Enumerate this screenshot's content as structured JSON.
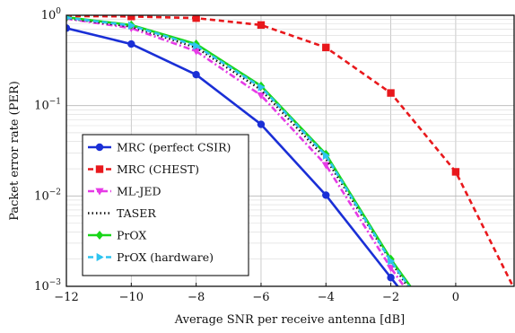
{
  "chart_data": {
    "type": "line",
    "xlabel": "Average SNR per receive antenna [dB]",
    "ylabel": "Packet error rate (PER)",
    "xlim": [
      -12,
      1.8
    ],
    "ylim": [
      0.001,
      1
    ],
    "y_scale": "log",
    "grid": true,
    "legend_position": "lower-left",
    "x_ticks": [
      "−12",
      "−10",
      "−8",
      "−6",
      "−4",
      "−2",
      "0"
    ],
    "x_tick_values": [
      -12,
      -10,
      -8,
      -6,
      -4,
      -2,
      0
    ],
    "y_ticks": [
      {
        "base": "10",
        "exp": "0",
        "value": 1
      },
      {
        "base": "10",
        "exp": "−1",
        "value": 0.1
      },
      {
        "base": "10",
        "exp": "−2",
        "value": 0.01
      },
      {
        "base": "10",
        "exp": "−3",
        "value": 0.001
      }
    ],
    "series": [
      {
        "name": "MRC (perfect CSIR)",
        "color": "#1a2fd6",
        "dash": "solid",
        "marker": "circle",
        "x": [
          -12,
          -10,
          -8,
          -6,
          -4,
          -2,
          -1.3
        ],
        "y": [
          0.72,
          0.48,
          0.22,
          0.062,
          0.0102,
          0.00125,
          0.0006
        ]
      },
      {
        "name": "MRC (CHEST)",
        "color": "#e8181c",
        "dash": "dashed",
        "marker": "square",
        "x": [
          -12,
          -10,
          -8,
          -6,
          -4,
          -2,
          0,
          1.9
        ],
        "y": [
          0.98,
          0.97,
          0.93,
          0.78,
          0.44,
          0.138,
          0.0185,
          0.0008
        ]
      },
      {
        "name": "ML-JED",
        "color": "#e63ae6",
        "dash": "dashdot",
        "marker": "triangle-down",
        "x": [
          -12,
          -10,
          -8,
          -6,
          -4,
          -2,
          -1.5
        ],
        "y": [
          0.92,
          0.72,
          0.4,
          0.13,
          0.022,
          0.0016,
          0.0009
        ]
      },
      {
        "name": "TASER",
        "color": "#111111",
        "dash": "dotted",
        "marker": "none",
        "x": [
          -12,
          -10,
          -8,
          -6,
          -4,
          -2,
          -1.45
        ],
        "y": [
          0.93,
          0.75,
          0.44,
          0.15,
          0.026,
          0.0019,
          0.00095
        ]
      },
      {
        "name": "PrOX",
        "color": "#19d619",
        "dash": "solid",
        "marker": "diamond",
        "x": [
          -12,
          -10,
          -8,
          -6,
          -4,
          -2,
          -1.4
        ],
        "y": [
          0.95,
          0.78,
          0.48,
          0.165,
          0.029,
          0.002,
          0.001
        ]
      },
      {
        "name": "PrOX (hardware)",
        "color": "#2ec4f0",
        "dash": "dashed",
        "marker": "triangle-right",
        "x": [
          -12,
          -10,
          -8,
          -6,
          -4,
          -2,
          -1.42
        ],
        "y": [
          0.94,
          0.77,
          0.46,
          0.16,
          0.028,
          0.0019,
          0.00098
        ]
      }
    ]
  }
}
